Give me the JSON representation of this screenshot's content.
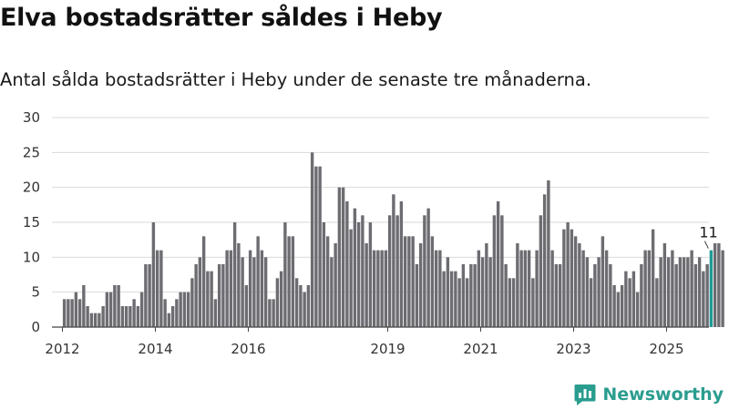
{
  "title": "Elva bostadsrätter såldes i Heby",
  "subtitle": "Antal sålda bostadsrätter i Heby under de senaste tre månaderna.",
  "brand": {
    "name": "Newsworthy",
    "icon": "newsworthy-logo-icon"
  },
  "colors": {
    "bar": "#6d6c71",
    "highlight": "#1f9a94",
    "grid": "#d9d9d9",
    "brand": "#2a9d8f"
  },
  "chart_data": {
    "type": "bar",
    "title": "Elva bostadsrätter såldes i Heby",
    "subtitle": "Antal sålda bostadsrätter i Heby under de senaste tre månaderna.",
    "xlabel": "",
    "ylabel": "",
    "ylim": [
      0,
      30
    ],
    "yticks": [
      0,
      5,
      10,
      15,
      20,
      25,
      30
    ],
    "xlim": [
      "2011-11",
      "2025-11"
    ],
    "xticks": [
      "2012",
      "2014",
      "2016",
      "2019",
      "2021",
      "2023",
      "2025"
    ],
    "grid": true,
    "frequency": "monthly",
    "x_start": "2012-01",
    "values": [
      4,
      4,
      4,
      5,
      4,
      6,
      3,
      2,
      2,
      2,
      3,
      5,
      5,
      6,
      6,
      3,
      3,
      3,
      4,
      3,
      5,
      9,
      9,
      15,
      11,
      11,
      4,
      2,
      3,
      4,
      5,
      5,
      5,
      7,
      9,
      10,
      13,
      8,
      8,
      4,
      9,
      9,
      11,
      11,
      15,
      12,
      10,
      6,
      11,
      10,
      13,
      11,
      10,
      4,
      4,
      7,
      8,
      15,
      13,
      13,
      7,
      6,
      5,
      6,
      25,
      23,
      23,
      15,
      13,
      10,
      12,
      20,
      20,
      18,
      14,
      17,
      15,
      16,
      12,
      15,
      11,
      11,
      11,
      11,
      16,
      19,
      16,
      18,
      13,
      13,
      13,
      9,
      12,
      16,
      17,
      13,
      11,
      11,
      8,
      10,
      8,
      8,
      7,
      9,
      7,
      9,
      9,
      11,
      10,
      12,
      10,
      16,
      18,
      16,
      9,
      7,
      7,
      12,
      11,
      11,
      11,
      7,
      11,
      16,
      19,
      21,
      11,
      9,
      9,
      14,
      15,
      14,
      13,
      12,
      11,
      10,
      7,
      9,
      10,
      13,
      11,
      9,
      6,
      5,
      6,
      8,
      7,
      8,
      5,
      9,
      11,
      11,
      14,
      7,
      10,
      12,
      10,
      11,
      9,
      10,
      10,
      10,
      11,
      9,
      10,
      8,
      9,
      11,
      12,
      12,
      11
    ],
    "highlight": {
      "index": 167,
      "value": 11,
      "label": "11"
    }
  }
}
